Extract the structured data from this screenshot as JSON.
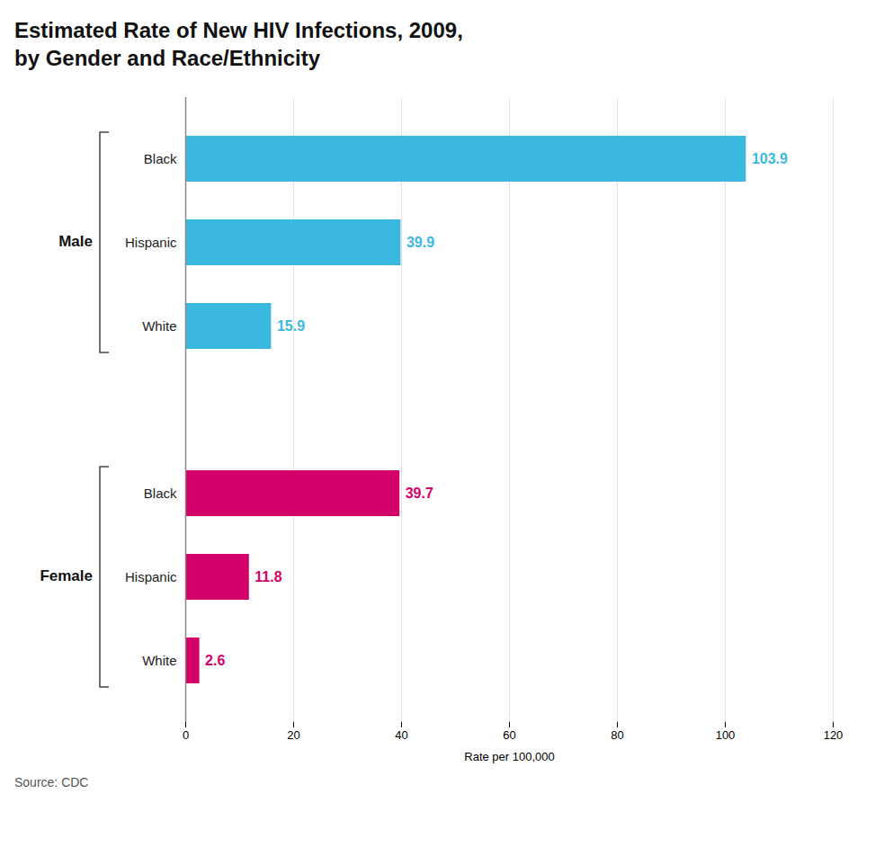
{
  "chart_data": {
    "type": "bar",
    "orientation": "horizontal",
    "title": "Estimated Rate of New HIV Infections, 2009,",
    "subtitle": "by Gender and Race/Ethnicity",
    "categories": [
      "Black",
      "Hispanic",
      "White",
      "Black",
      "Hispanic",
      "White"
    ],
    "series": [
      {
        "name": "Male",
        "color": "#3BB8E0",
        "values": [
          103.9,
          39.9,
          15.9,
          null,
          null,
          null
        ]
      },
      {
        "name": "Female",
        "color": "#D4006A",
        "values": [
          null,
          null,
          null,
          39.7,
          11.8,
          2.6
        ]
      }
    ],
    "xlabel": "Rate per 100,000",
    "xlim": [
      0,
      120
    ],
    "xticks": [
      0,
      20,
      40,
      60,
      80,
      100,
      120
    ],
    "grid": true,
    "data_labels": true,
    "caption": "Source: CDC"
  }
}
